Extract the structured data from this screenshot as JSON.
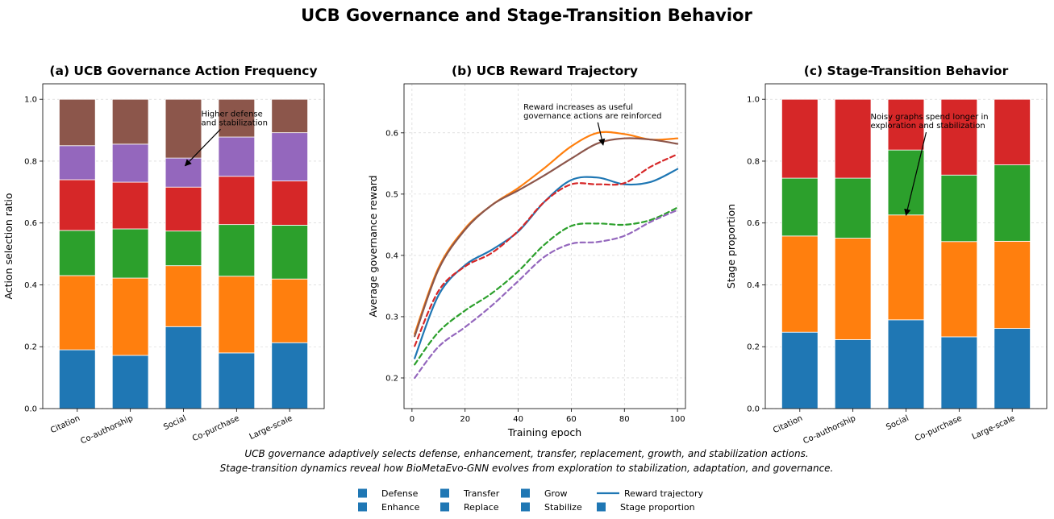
{
  "suptitle": "UCB Governance and Stage-Transition Behavior",
  "colors": {
    "blue": "#1f77b4",
    "orange": "#ff7f0e",
    "green": "#2ca02c",
    "red": "#d62728",
    "purple": "#9467bd",
    "brown": "#8c564b"
  },
  "caption": {
    "line1": "UCB governance adaptively selects defense, enhancement, transfer, replacement, growth, and stabilization actions.",
    "line2": "Stage-transition dynamics reveal how BioMetaEvo-GNN evolves from exploration to stabilization, adaptation, and governance."
  },
  "legend": {
    "entries": [
      {
        "label": "Defense",
        "kind": "square",
        "color": "#1f77b4"
      },
      {
        "label": "Enhance",
        "kind": "square",
        "color": "#1f77b4"
      },
      {
        "label": "Transfer",
        "kind": "square",
        "color": "#1f77b4"
      },
      {
        "label": "Replace",
        "kind": "square",
        "color": "#1f77b4"
      },
      {
        "label": "Grow",
        "kind": "square",
        "color": "#1f77b4"
      },
      {
        "label": "Stabilize",
        "kind": "square",
        "color": "#1f77b4"
      },
      {
        "label": "Reward trajectory",
        "kind": "line",
        "color": "#1f77b4"
      },
      {
        "label": "Stage proportion",
        "kind": "square",
        "color": "#1f77b4"
      }
    ]
  },
  "chart_data": [
    {
      "type": "bar",
      "stacked": true,
      "title": "(a) UCB Governance Action Frequency",
      "xlabel": "",
      "ylabel": "Action selection ratio",
      "ylim": [
        0,
        1.05
      ],
      "yticks": [
        "0.0",
        "0.2",
        "0.4",
        "0.6",
        "0.8",
        "1.0"
      ],
      "grid": true,
      "categories": [
        "Citation",
        "Co-authorship",
        "Social",
        "Co-purchase",
        "Large-scale"
      ],
      "series": [
        {
          "color": "#1f77b4",
          "values": [
            0.19,
            0.172,
            0.265,
            0.18,
            0.213
          ]
        },
        {
          "color": "#ff7f0e",
          "values": [
            0.24,
            0.25,
            0.197,
            0.248,
            0.206
          ]
        },
        {
          "color": "#2ca02c",
          "values": [
            0.146,
            0.159,
            0.112,
            0.167,
            0.174
          ]
        },
        {
          "color": "#d62728",
          "values": [
            0.164,
            0.151,
            0.142,
            0.156,
            0.143
          ]
        },
        {
          "color": "#9467bd",
          "values": [
            0.11,
            0.123,
            0.094,
            0.127,
            0.156
          ]
        },
        {
          "color": "#8c564b",
          "values": [
            0.15,
            0.145,
            0.19,
            0.122,
            0.108
          ]
        }
      ],
      "annotation": {
        "text": [
          "Higher defense",
          "and stabilization"
        ],
        "target_category": "Social",
        "target_y": 0.785
      }
    },
    {
      "type": "line",
      "title": "(b) UCB Reward Trajectory",
      "xlabel": "Training epoch",
      "ylabel": "Average governance reward",
      "xlim": [
        -3,
        103
      ],
      "ylim": [
        0.15,
        0.68
      ],
      "xticks": [
        "0",
        "20",
        "40",
        "60",
        "80",
        "100"
      ],
      "yticks": [
        "0.2",
        "0.3",
        "0.4",
        "0.5",
        "0.6"
      ],
      "grid": true,
      "x": [
        1,
        10,
        20,
        30,
        40,
        50,
        60,
        70,
        80,
        90,
        100
      ],
      "series": [
        {
          "color": "#1f77b4",
          "dash": "solid",
          "values": [
            0.232,
            0.335,
            0.384,
            0.409,
            0.439,
            0.488,
            0.523,
            0.527,
            0.516,
            0.52,
            0.541
          ]
        },
        {
          "color": "#ff7f0e",
          "dash": "solid",
          "values": [
            0.272,
            0.38,
            0.444,
            0.482,
            0.51,
            0.543,
            0.578,
            0.6,
            0.598,
            0.589,
            0.591
          ]
        },
        {
          "color": "#2ca02c",
          "dash": "dashed",
          "values": [
            0.222,
            0.275,
            0.31,
            0.338,
            0.374,
            0.418,
            0.448,
            0.452,
            0.45,
            0.458,
            0.478
          ]
        },
        {
          "color": "#d62728",
          "dash": "dashed",
          "values": [
            0.252,
            0.342,
            0.382,
            0.404,
            0.44,
            0.488,
            0.516,
            0.516,
            0.518,
            0.545,
            0.565
          ]
        },
        {
          "color": "#9467bd",
          "dash": "dashed",
          "values": [
            0.2,
            0.251,
            0.283,
            0.318,
            0.358,
            0.398,
            0.419,
            0.422,
            0.432,
            0.455,
            0.474
          ]
        },
        {
          "color": "#8c564b",
          "dash": "solid",
          "values": [
            0.268,
            0.377,
            0.442,
            0.482,
            0.506,
            0.531,
            0.558,
            0.583,
            0.591,
            0.589,
            0.582
          ]
        }
      ],
      "annotation": {
        "text": [
          "Reward increases as useful",
          "governance actions are reinforced"
        ],
        "target_x": 72,
        "target_y": 0.58
      }
    },
    {
      "type": "bar",
      "stacked": true,
      "title": "(c) Stage-Transition Behavior",
      "xlabel": "",
      "ylabel": "Stage proportion",
      "ylim": [
        0,
        1.05
      ],
      "yticks": [
        "0.0",
        "0.2",
        "0.4",
        "0.6",
        "0.8",
        "1.0"
      ],
      "grid": true,
      "categories": [
        "Citation",
        "Co-authorship",
        "Social",
        "Co-purchase",
        "Large-scale"
      ],
      "series": [
        {
          "color": "#1f77b4",
          "values": [
            0.247,
            0.223,
            0.287,
            0.232,
            0.259
          ]
        },
        {
          "color": "#ff7f0e",
          "values": [
            0.311,
            0.328,
            0.339,
            0.308,
            0.282
          ]
        },
        {
          "color": "#2ca02c",
          "values": [
            0.187,
            0.194,
            0.21,
            0.215,
            0.247
          ]
        },
        {
          "color": "#d62728",
          "values": [
            0.255,
            0.255,
            0.164,
            0.245,
            0.212
          ]
        }
      ],
      "annotation": {
        "text": [
          "Noisy graphs spend longer in",
          "exploration and stabilization"
        ],
        "target_category": "Social",
        "target_y": 0.625
      }
    }
  ]
}
